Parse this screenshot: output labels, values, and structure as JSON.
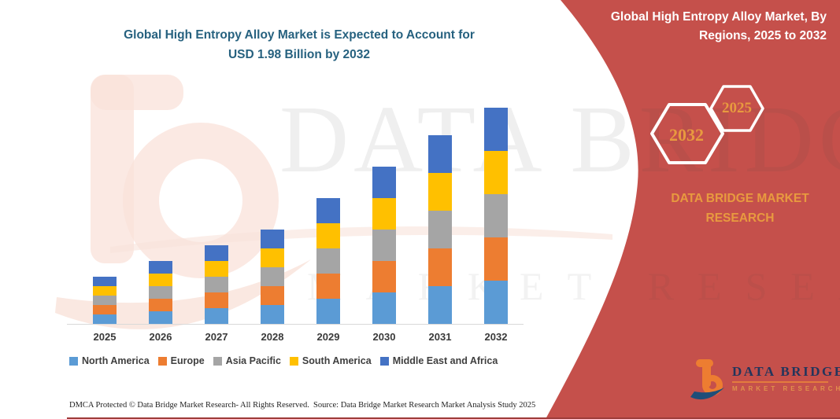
{
  "left": {
    "title_line1": "Global High Entropy Alloy Market is Expected to Account for",
    "title_line2": "USD 1.98 Billion by 2032",
    "footer_dmca": "DMCA Protected © Data Bridge Market Research-  All Rights Reserved.",
    "footer_source": "Source: Data Bridge Market Research  Market Analysis Study 2025"
  },
  "right_panel": {
    "title_line1": "Global High Entropy Alloy Market, By",
    "title_line2": "Regions, 2025 to 2032",
    "hexagon_labels": {
      "back": "2032",
      "front": "2025"
    },
    "brand_line1": "DATA BRIDGE MARKET",
    "brand_line2": "RESEARCH",
    "logo_name": "DATA BRIDGE",
    "logo_tagline": "MARKET RESEARCH",
    "colors": {
      "panel_red": "#C5504B",
      "gold": "#E89A3F"
    }
  },
  "watermark": {
    "line1": "DATA BRIDGE",
    "line2": "MARKET RESEARCH"
  },
  "chart_data": {
    "type": "bar",
    "stacked": true,
    "title": "Global High Entropy Alloy Market is Expected to Account for USD 1.98 Billion by 2032",
    "unit": "USD Billion",
    "xlabel": "",
    "ylabel": "",
    "grid": false,
    "value_axis_hidden": true,
    "legend_position": "bottom",
    "ylim": [
      0,
      2.1
    ],
    "categories": [
      "2025",
      "2026",
      "2027",
      "2028",
      "2029",
      "2030",
      "2031",
      "2032"
    ],
    "series": [
      {
        "name": "North America",
        "color": "#5B9BD5",
        "values": [
          0.088,
          0.114,
          0.144,
          0.172,
          0.226,
          0.284,
          0.34,
          0.396
        ]
      },
      {
        "name": "Europe",
        "color": "#ED7D31",
        "values": [
          0.088,
          0.114,
          0.144,
          0.172,
          0.226,
          0.284,
          0.34,
          0.396
        ]
      },
      {
        "name": "Asia Pacific",
        "color": "#A5A5A5",
        "values": [
          0.088,
          0.114,
          0.144,
          0.172,
          0.226,
          0.284,
          0.34,
          0.396
        ]
      },
      {
        "name": "South America",
        "color": "#FFC000",
        "values": [
          0.088,
          0.114,
          0.144,
          0.172,
          0.226,
          0.284,
          0.34,
          0.396
        ]
      },
      {
        "name": "Middle East and Africa",
        "color": "#4472C4",
        "values": [
          0.088,
          0.114,
          0.144,
          0.172,
          0.226,
          0.284,
          0.34,
          0.396
        ]
      }
    ],
    "totals": [
      0.44,
      0.57,
      0.72,
      0.86,
      1.13,
      1.42,
      1.7,
      1.98
    ]
  }
}
